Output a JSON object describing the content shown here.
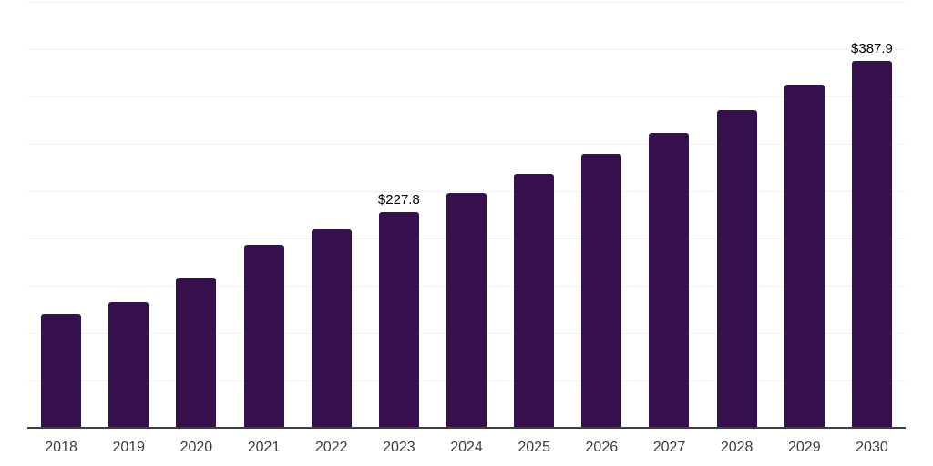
{
  "chart_data": {
    "type": "bar",
    "categories": [
      "2018",
      "2019",
      "2020",
      "2021",
      "2022",
      "2023",
      "2024",
      "2025",
      "2026",
      "2027",
      "2028",
      "2029",
      "2030"
    ],
    "values": [
      120.0,
      132.4,
      158.7,
      193.0,
      209.9,
      227.8,
      248.4,
      268.3,
      289.1,
      311.8,
      335.6,
      362.2,
      387.9
    ],
    "data_labels": {
      "2023": "$227.8",
      "2030": "$387.9"
    },
    "title": "",
    "xlabel": "",
    "ylabel": "",
    "ylim": [
      0,
      450
    ],
    "gridline_step": 50,
    "grid": true,
    "legend_position": "none",
    "colors": {
      "bar": "#36114E",
      "gridline": "#f2f2f2",
      "axis_line": "#404040",
      "value_label": "#000000",
      "tick_label": "#3b3b3b"
    }
  }
}
